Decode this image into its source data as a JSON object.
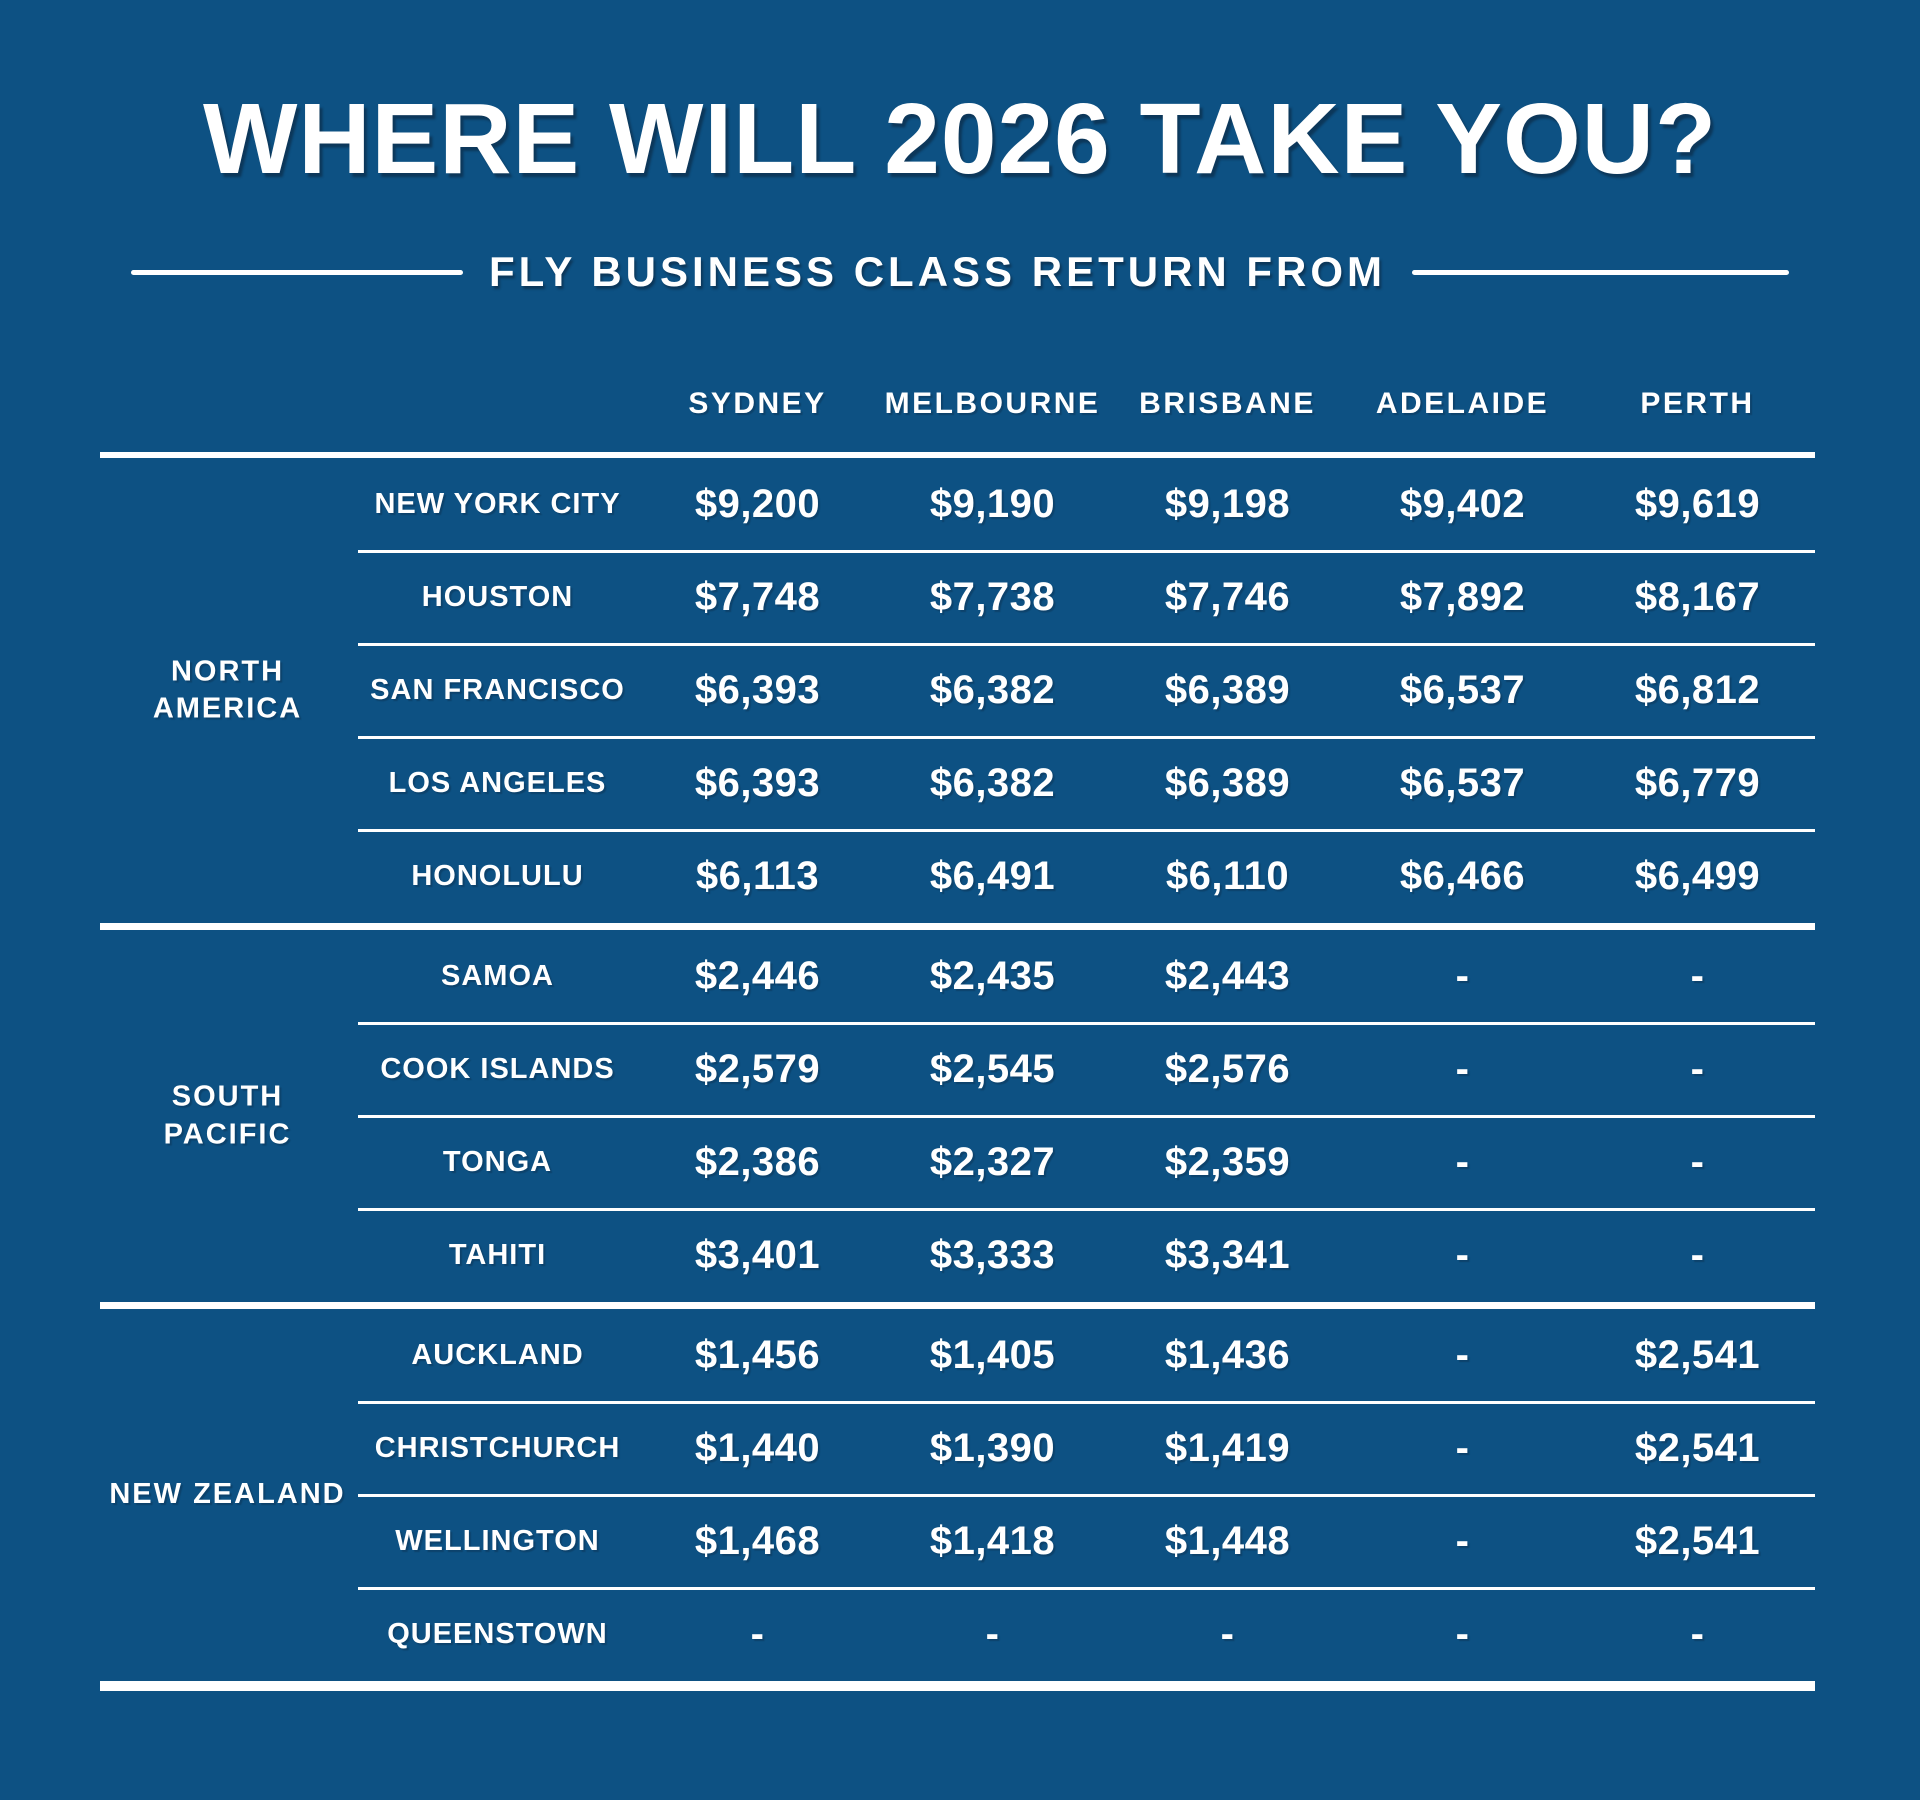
{
  "page": {
    "title": "WHERE WILL 2026 TAKE YOU?",
    "subtitle": "FLY BUSINESS CLASS RETURN FROM"
  },
  "colors": {
    "background": "#0D5183",
    "text": "#FFFFFF",
    "divider": "#FFFFFF"
  },
  "chart_data": {
    "type": "table",
    "title": "WHERE WILL 2026 TAKE YOU?",
    "subtitle": "FLY BUSINESS CLASS RETURN FROM",
    "value_description": "Business class return airfares from Australian cities",
    "origin_columns": [
      "SYDNEY",
      "MELBOURNE",
      "BRISBANE",
      "ADELAIDE",
      "PERTH"
    ],
    "empty_cell": "-",
    "regions": [
      {
        "name": "NORTH AMERICA",
        "label_lines": [
          "NORTH",
          "AMERICA"
        ],
        "rows": [
          {
            "destination": "NEW YORK CITY",
            "prices": [
              "$9,200",
              "$9,190",
              "$9,198",
              "$9,402",
              "$9,619"
            ]
          },
          {
            "destination": "HOUSTON",
            "prices": [
              "$7,748",
              "$7,738",
              "$7,746",
              "$7,892",
              "$8,167"
            ]
          },
          {
            "destination": "SAN FRANCISCO",
            "prices": [
              "$6,393",
              "$6,382",
              "$6,389",
              "$6,537",
              "$6,812"
            ]
          },
          {
            "destination": "LOS ANGELES",
            "prices": [
              "$6,393",
              "$6,382",
              "$6,389",
              "$6,537",
              "$6,779"
            ]
          },
          {
            "destination": "HONOLULU",
            "prices": [
              "$6,113",
              "$6,491",
              "$6,110",
              "$6,466",
              "$6,499"
            ]
          }
        ]
      },
      {
        "name": "SOUTH PACIFIC",
        "label_lines": [
          "SOUTH",
          "PACIFIC"
        ],
        "rows": [
          {
            "destination": "SAMOA",
            "prices": [
              "$2,446",
              "$2,435",
              "$2,443",
              "-",
              "-"
            ]
          },
          {
            "destination": "COOK ISLANDS",
            "prices": [
              "$2,579",
              "$2,545",
              "$2,576",
              "-",
              "-"
            ]
          },
          {
            "destination": "TONGA",
            "prices": [
              "$2,386",
              "$2,327",
              "$2,359",
              "-",
              "-"
            ]
          },
          {
            "destination": "TAHITI",
            "prices": [
              "$3,401",
              "$3,333",
              "$3,341",
              "-",
              "-"
            ]
          }
        ]
      },
      {
        "name": "NEW ZEALAND",
        "label_lines": [
          "NEW ZEALAND"
        ],
        "rows": [
          {
            "destination": "AUCKLAND",
            "prices": [
              "$1,456",
              "$1,405",
              "$1,436",
              "-",
              "$2,541"
            ]
          },
          {
            "destination": "CHRISTCHURCH",
            "prices": [
              "$1,440",
              "$1,390",
              "$1,419",
              "-",
              "$2,541"
            ]
          },
          {
            "destination": "WELLINGTON",
            "prices": [
              "$1,468",
              "$1,418",
              "$1,448",
              "-",
              "$2,541"
            ]
          },
          {
            "destination": "QUEENSTOWN",
            "prices": [
              "-",
              "-",
              "-",
              "-",
              "-"
            ]
          }
        ]
      }
    ]
  }
}
